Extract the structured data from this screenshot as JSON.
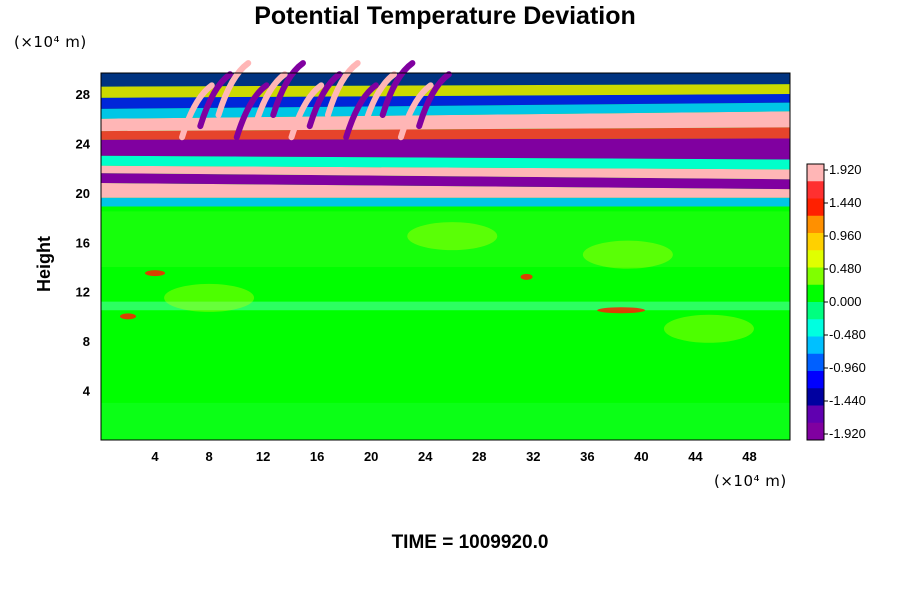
{
  "chart_data": {
    "type": "heatmap",
    "title": "Potential Temperature Deviation",
    "ylabel": "Height",
    "y_unit": "(×10⁴ m)",
    "x_unit": "(×10⁴ m)",
    "footer": "TIME = 1009920.0",
    "xlim": [
      0,
      51
    ],
    "ylim": [
      0,
      29.7
    ],
    "x_ticks": [
      "4",
      "8",
      "12",
      "16",
      "20",
      "24",
      "28",
      "32",
      "36",
      "40",
      "44",
      "48"
    ],
    "x_tick_values": [
      4,
      8,
      12,
      16,
      20,
      24,
      28,
      32,
      36,
      40,
      44,
      48
    ],
    "y_ticks": [
      "4",
      "8",
      "12",
      "16",
      "20",
      "24",
      "28"
    ],
    "y_tick_values": [
      4,
      8,
      12,
      16,
      20,
      24,
      28
    ],
    "colorbar": {
      "labels": [
        "1.920",
        "1.440",
        "0.960",
        "0.480",
        "0.000",
        "-0.480",
        "-0.960",
        "-1.440",
        "-1.920"
      ],
      "values": [
        1.92,
        1.44,
        0.96,
        0.48,
        0.0,
        -0.48,
        -0.96,
        -1.44,
        -1.92
      ],
      "colors_top_to_bottom": [
        "#ffb6b6",
        "#ff3030",
        "#ff2000",
        "#ff9000",
        "#ffd000",
        "#e0ff00",
        "#80ff00",
        "#00ff00",
        "#00ff80",
        "#00ffe0",
        "#00c0ff",
        "#0060ff",
        "#0000ff",
        "#0000a0",
        "#6000b0",
        "#8000a0"
      ]
    },
    "field_summary": {
      "below_18": "near zero (green) with weak positive patches",
      "18_to_26": "alternating strong positive (pink) and negative (purple) bands",
      "above_24": "wavy alternating positive/negative patterns"
    }
  }
}
